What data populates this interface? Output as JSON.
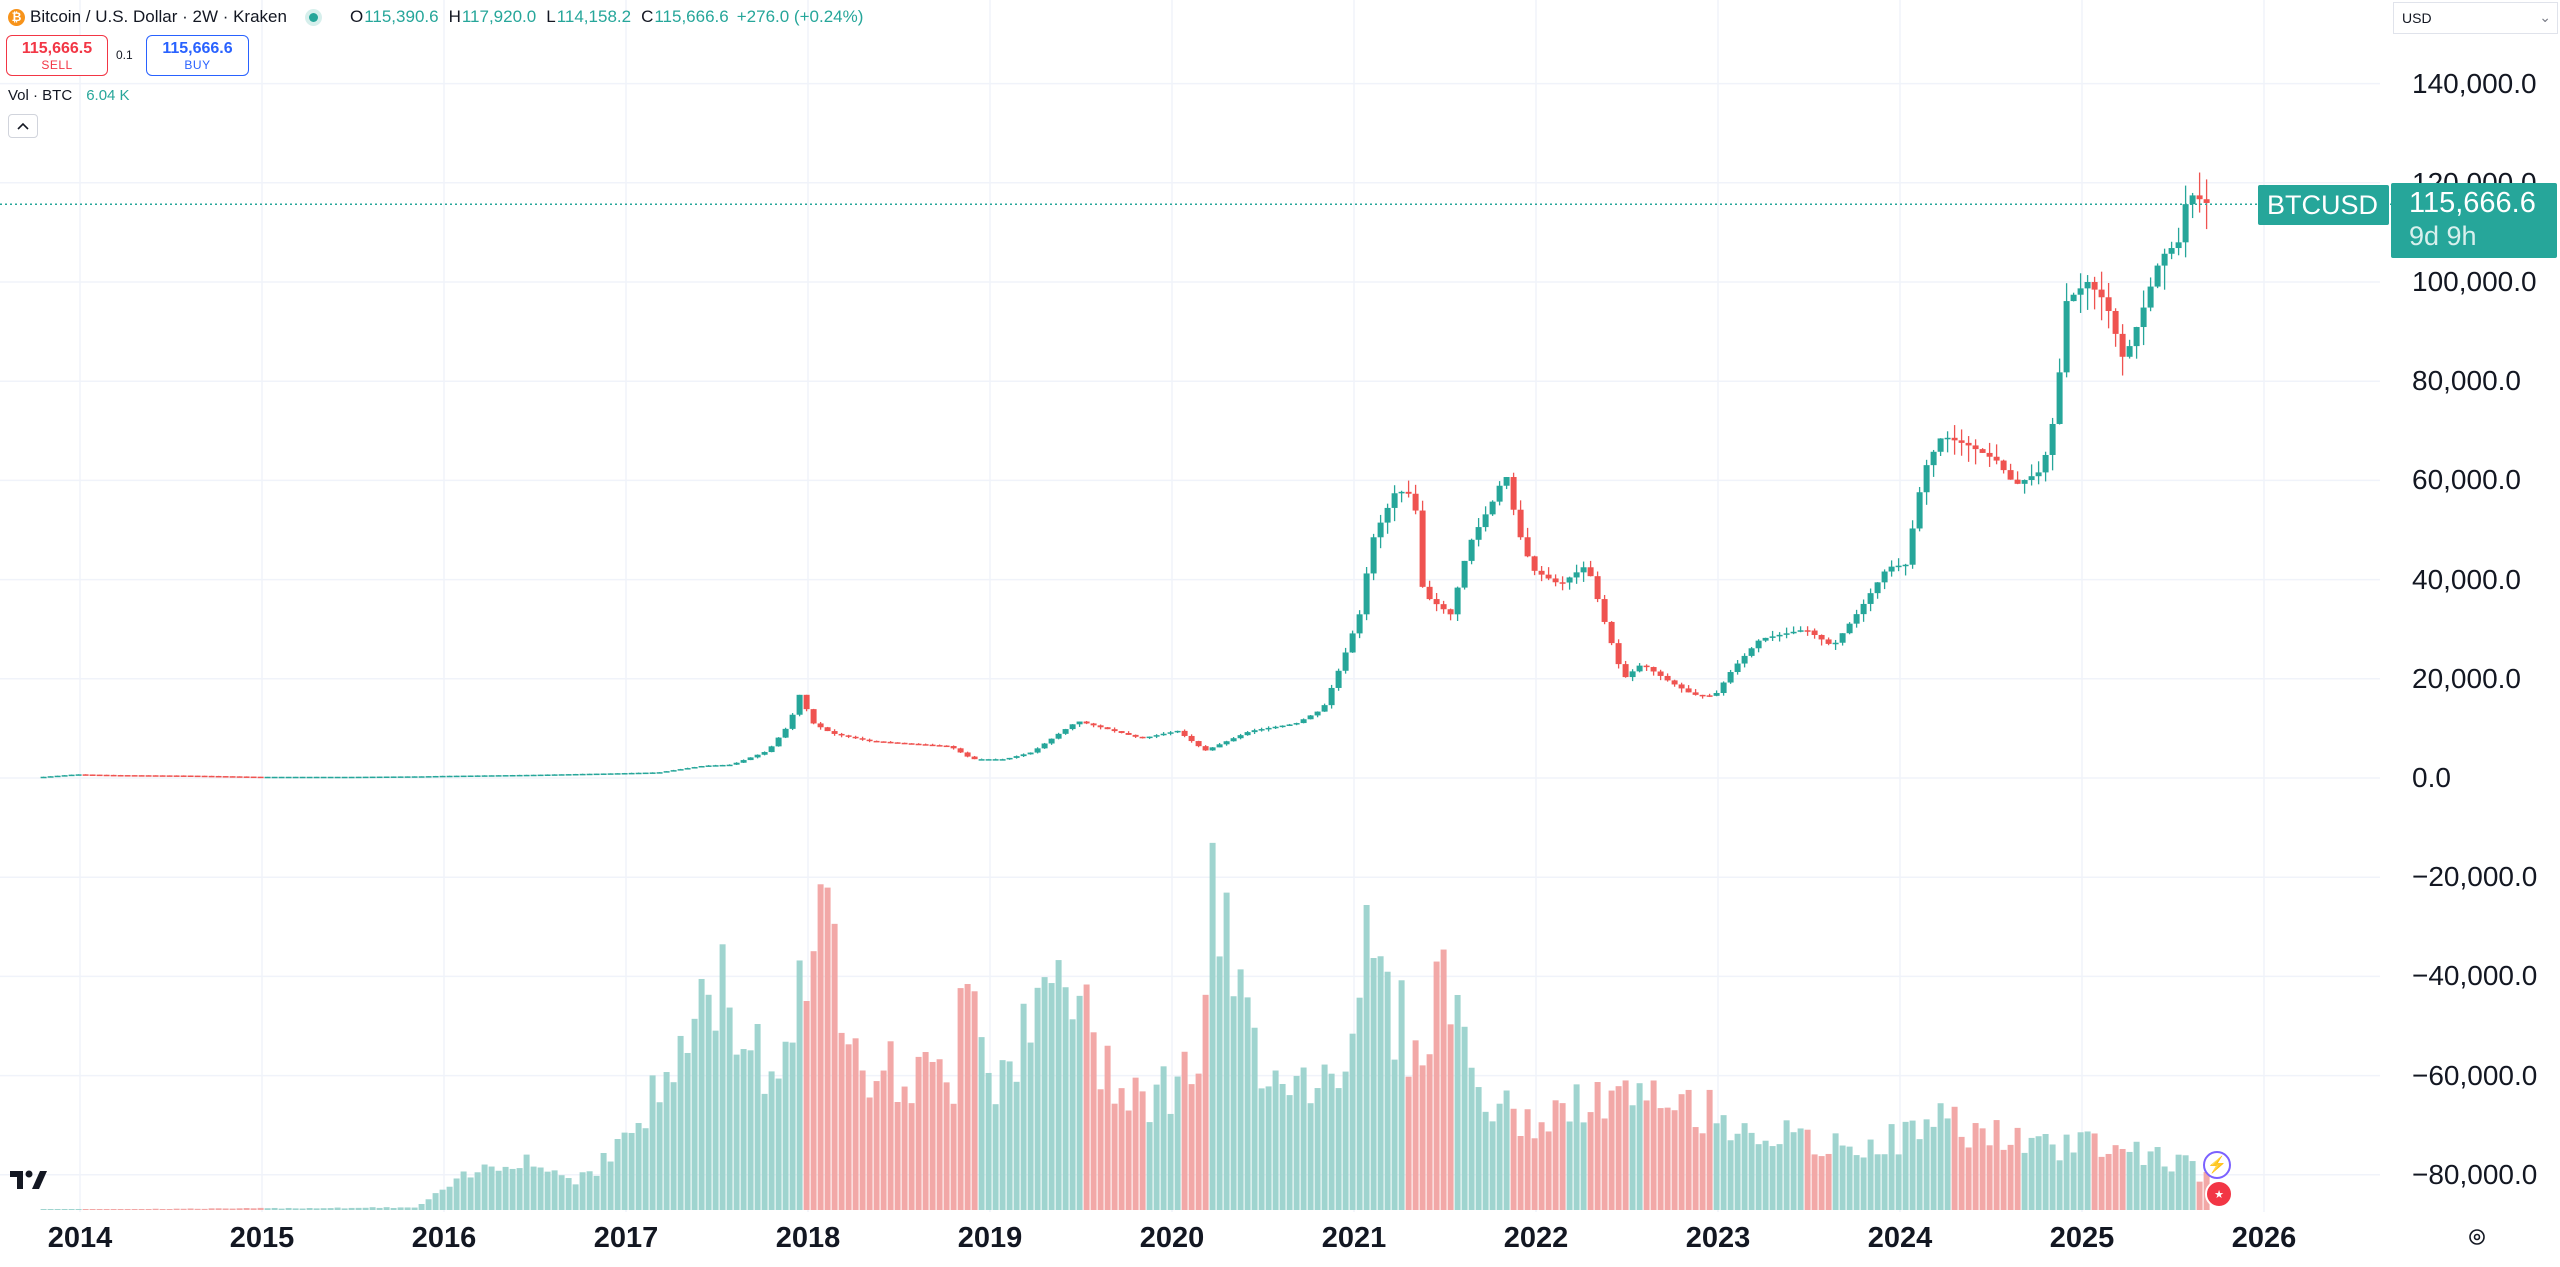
{
  "header": {
    "icon_glyph": "₿",
    "title": "Bitcoin / U.S. Dollar · 2W · Kraken",
    "ohlc": {
      "o_label": "O",
      "o": "115,390.6",
      "h_label": "H",
      "h": "117,920.0",
      "l_label": "L",
      "l": "114,158.2",
      "c_label": "C",
      "c": "115,666.6",
      "change": "+276.0 (+0.24%)"
    }
  },
  "trade": {
    "sell_price": "115,666.5",
    "sell_label": "SELL",
    "spread": "0.1",
    "buy_price": "115,666.6",
    "buy_label": "BUY"
  },
  "volume_legend": {
    "label": "Vol · BTC",
    "value": "6.04 K"
  },
  "currency_select": {
    "value": "USD"
  },
  "price_label": {
    "symbol": "BTCUSD",
    "price": "115,666.6",
    "countdown": "9d 9h"
  },
  "colors": {
    "up": "#26a69a",
    "down": "#ef5350",
    "vol_up": "#9fd4cf",
    "vol_down": "#f2a8a7"
  },
  "chart_data": {
    "type": "candlestick",
    "interval": "2W",
    "last_price": 115666.6,
    "y_ticks": [
      "140,000.0",
      "120,000.0",
      "100,000.0",
      "80,000.0",
      "60,000.0",
      "40,000.0",
      "20,000.0",
      "0.0",
      "−20,000.0",
      "−40,000.0",
      "−60,000.0",
      "−80,000.0"
    ],
    "x_ticks": [
      "2014",
      "2015",
      "2016",
      "2017",
      "2018",
      "2019",
      "2020",
      "2021",
      "2022",
      "2023",
      "2024",
      "2025",
      "2026"
    ],
    "ylim": [
      -80000,
      140000
    ],
    "price_anchors": [
      [
        2013.8,
        200
      ],
      [
        2014.0,
        750
      ],
      [
        2014.2,
        600
      ],
      [
        2014.6,
        500
      ],
      [
        2015.0,
        250
      ],
      [
        2015.5,
        250
      ],
      [
        2015.9,
        350
      ],
      [
        2016.0,
        430
      ],
      [
        2016.5,
        650
      ],
      [
        2016.95,
        950
      ],
      [
        2017.2,
        1150
      ],
      [
        2017.45,
        2500
      ],
      [
        2017.6,
        2700
      ],
      [
        2017.8,
        5500
      ],
      [
        2017.92,
        11000
      ],
      [
        2017.97,
        17000
      ],
      [
        2018.05,
        11000
      ],
      [
        2018.15,
        9000
      ],
      [
        2018.35,
        7500
      ],
      [
        2018.55,
        7000
      ],
      [
        2018.8,
        6400
      ],
      [
        2018.92,
        3800
      ],
      [
        2019.1,
        3800
      ],
      [
        2019.25,
        5200
      ],
      [
        2019.4,
        9000
      ],
      [
        2019.5,
        11500
      ],
      [
        2019.7,
        9500
      ],
      [
        2019.85,
        8000
      ],
      [
        2020.05,
        9500
      ],
      [
        2020.2,
        5500
      ],
      [
        2020.45,
        9500
      ],
      [
        2020.7,
        11000
      ],
      [
        2020.85,
        14000
      ],
      [
        2020.95,
        23000
      ],
      [
        2021.05,
        33000
      ],
      [
        2021.12,
        48000
      ],
      [
        2021.25,
        58000
      ],
      [
        2021.35,
        57000
      ],
      [
        2021.4,
        37000
      ],
      [
        2021.55,
        33000
      ],
      [
        2021.65,
        47000
      ],
      [
        2021.8,
        57000
      ],
      [
        2021.85,
        62000
      ],
      [
        2021.92,
        50000
      ],
      [
        2022.0,
        42000
      ],
      [
        2022.15,
        39000
      ],
      [
        2022.3,
        43000
      ],
      [
        2022.4,
        31000
      ],
      [
        2022.5,
        20000
      ],
      [
        2022.6,
        23000
      ],
      [
        2022.75,
        19500
      ],
      [
        2022.88,
        16800
      ],
      [
        2023.0,
        16500
      ],
      [
        2023.1,
        22000
      ],
      [
        2023.25,
        28000
      ],
      [
        2023.5,
        30000
      ],
      [
        2023.65,
        26500
      ],
      [
        2023.8,
        34000
      ],
      [
        2023.95,
        42500
      ],
      [
        2024.05,
        43000
      ],
      [
        2024.15,
        62000
      ],
      [
        2024.25,
        69000
      ],
      [
        2024.4,
        67000
      ],
      [
        2024.55,
        64000
      ],
      [
        2024.65,
        59000
      ],
      [
        2024.8,
        62000
      ],
      [
        2024.88,
        75000
      ],
      [
        2024.93,
        96000
      ],
      [
        2025.05,
        100000
      ],
      [
        2025.15,
        96000
      ],
      [
        2025.25,
        84000
      ],
      [
        2025.35,
        94000
      ],
      [
        2025.45,
        105000
      ],
      [
        2025.55,
        108000
      ],
      [
        2025.6,
        118000
      ],
      [
        2025.7,
        116000
      ],
      [
        2025.72,
        115666.6
      ]
    ],
    "volume_anchors": [
      [
        2013.8,
        0.1
      ],
      [
        2015.85,
        0.5
      ],
      [
        2016.1,
        6
      ],
      [
        2016.4,
        11
      ],
      [
        2016.7,
        6
      ],
      [
        2016.9,
        10
      ],
      [
        2017.2,
        24
      ],
      [
        2017.5,
        45
      ],
      [
        2017.75,
        30
      ],
      [
        2017.85,
        25
      ],
      [
        2017.95,
        50
      ],
      [
        2018.1,
        55
      ],
      [
        2018.35,
        28
      ],
      [
        2018.6,
        26
      ],
      [
        2018.8,
        26
      ],
      [
        2018.85,
        58
      ],
      [
        2019.0,
        26
      ],
      [
        2019.25,
        36
      ],
      [
        2019.4,
        48
      ],
      [
        2019.6,
        30
      ],
      [
        2019.9,
        22
      ],
      [
        2020.15,
        30
      ],
      [
        2020.22,
        60
      ],
      [
        2020.45,
        32
      ],
      [
        2020.75,
        25
      ],
      [
        2020.95,
        30
      ],
      [
        2021.0,
        45
      ],
      [
        2021.05,
        52
      ],
      [
        2021.35,
        30
      ],
      [
        2021.5,
        48
      ],
      [
        2021.7,
        22
      ],
      [
        2021.95,
        17
      ],
      [
        2022.4,
        22
      ],
      [
        2022.9,
        20
      ],
      [
        2023.2,
        16
      ],
      [
        2023.6,
        12
      ],
      [
        2024.0,
        14
      ],
      [
        2024.2,
        18
      ],
      [
        2024.5,
        15
      ],
      [
        2024.8,
        12
      ],
      [
        2025.0,
        14
      ],
      [
        2025.5,
        10
      ],
      [
        2025.72,
        6
      ]
    ],
    "volume_axis_max": 60
  }
}
